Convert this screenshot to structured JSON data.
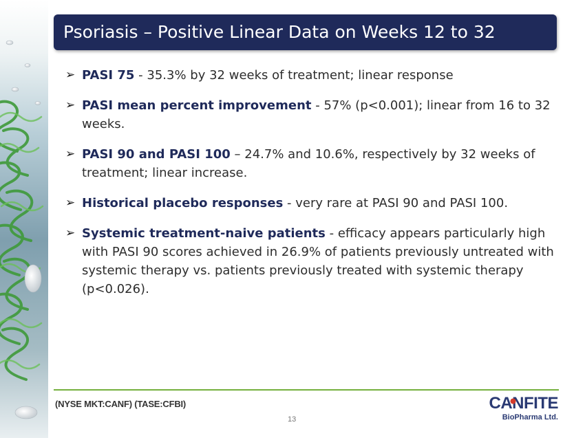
{
  "slide": {
    "title": "Psoriasis – Positive Linear Data on Weeks 12 to 32",
    "bullets": [
      {
        "heading": "PASI 75",
        "text": " -  35.3% by 32 weeks of treatment; linear response"
      },
      {
        "heading": "PASI mean percent improvement",
        "text": " -  57% (p<0.001); linear from 16 to 32 weeks."
      },
      {
        "heading": "PASI 90 and PASI 100",
        "text": " – 24.7%  and 10.6%, respectively by 32 weeks of treatment; linear increase."
      },
      {
        "heading": "Historical placebo responses",
        "text": " - very rare at PASI 90 and PASI 100."
      },
      {
        "heading": "Systemic treatment-naive patients",
        "text": " - efficacy appears particularly high with PASI 90 scores achieved in 26.9% of patients previously untreated with systemic therapy vs. patients previously treated with systemic therapy (p<0.026)."
      }
    ],
    "bullet_glyph": "➢"
  },
  "footer": {
    "ticker": "(NYSE MKT:CANF)  (TASE:CFBI)",
    "page_number": "13",
    "logo_main": "CANFITE",
    "logo_sub": "BioPharma Ltd."
  },
  "colors": {
    "title_bar": "#1f2a5a",
    "heading": "#1f2a5a",
    "footer_line": "#74b03d",
    "logo": "#2a3a73",
    "logo_accent": "#d23a2a"
  },
  "icons": {
    "bullet": "arrow-bullet-icon",
    "sidebar": "molecule-decoration",
    "logo_mark": "logo-dot-icon"
  }
}
